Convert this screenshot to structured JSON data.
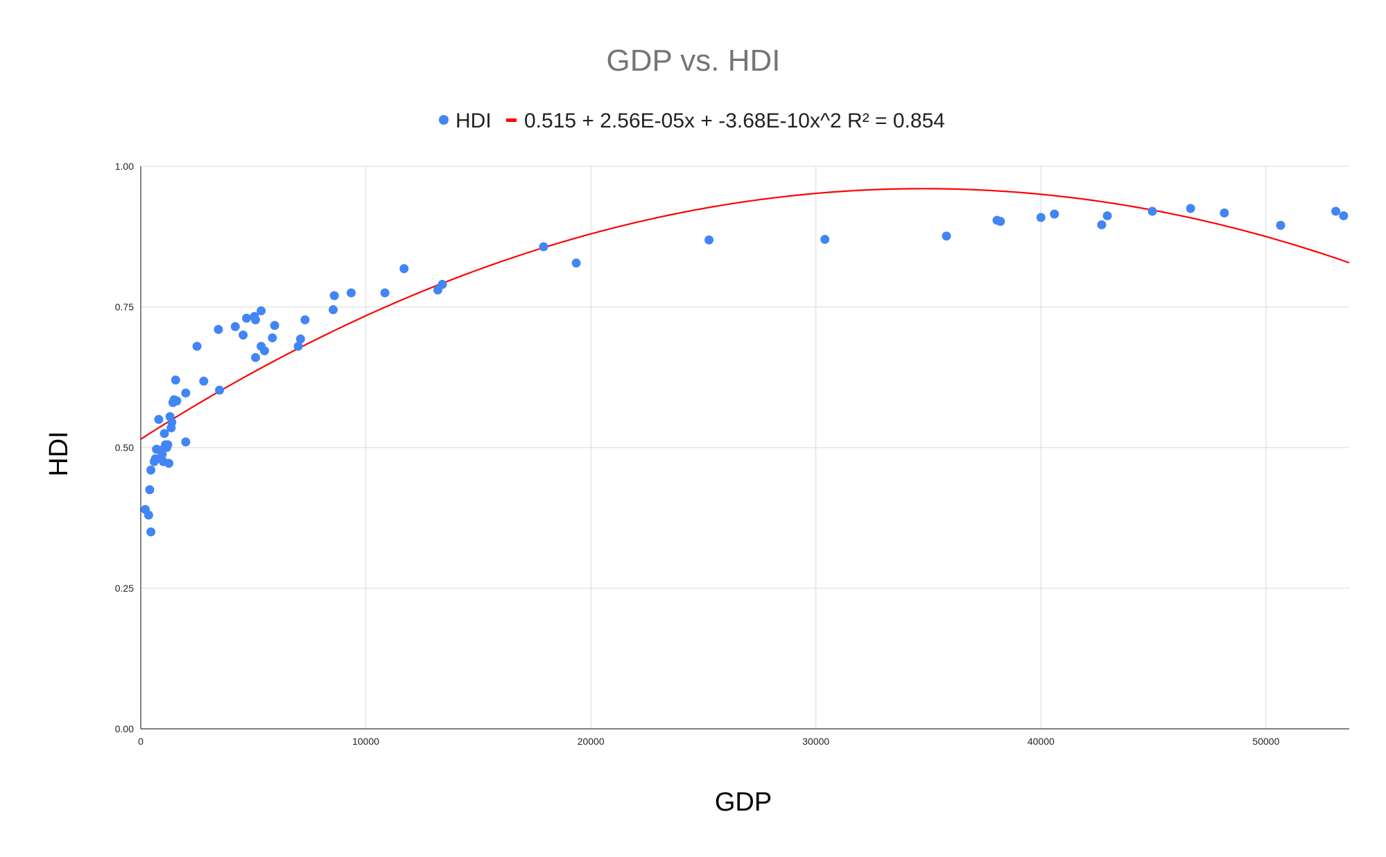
{
  "chart_data": {
    "type": "scatter",
    "title": "GDP vs. HDI",
    "xlabel": "GDP",
    "ylabel": "HDI",
    "xlim": [
      0,
      53700
    ],
    "ylim": [
      0,
      1
    ],
    "x_ticks": [
      0,
      10000,
      20000,
      30000,
      40000,
      50000
    ],
    "x_tick_labels": [
      "0",
      "10000",
      "20000",
      "30000",
      "40000",
      "50000"
    ],
    "y_ticks": [
      0,
      0.25,
      0.5,
      0.75,
      1
    ],
    "y_tick_labels": [
      "0.00",
      "0.25",
      "0.50",
      "0.75",
      "1.00"
    ],
    "grid": true,
    "legend_position": "top",
    "legend": {
      "series_label": "HDI",
      "trendline_label": "0.515 + 2.56E-05x + -3.68E-10x^2 R² = 0.854"
    },
    "colors": {
      "series": "#4285f4",
      "trendline": "#ff0000",
      "title": "#757575"
    },
    "trendline": {
      "type": "polynomial",
      "coefficients": [
        0.515,
        2.56e-05,
        -3.68e-10
      ],
      "r_squared": 0.854
    },
    "series": [
      {
        "name": "HDI",
        "points": [
          [
            200,
            0.39
          ],
          [
            350,
            0.38
          ],
          [
            400,
            0.425
          ],
          [
            450,
            0.35
          ],
          [
            450,
            0.46
          ],
          [
            600,
            0.475
          ],
          [
            650,
            0.48
          ],
          [
            700,
            0.497
          ],
          [
            800,
            0.55
          ],
          [
            900,
            0.495
          ],
          [
            950,
            0.488
          ],
          [
            1000,
            0.475
          ],
          [
            1050,
            0.525
          ],
          [
            1100,
            0.505
          ],
          [
            1150,
            0.5
          ],
          [
            1200,
            0.505
          ],
          [
            1250,
            0.472
          ],
          [
            1300,
            0.555
          ],
          [
            1350,
            0.535
          ],
          [
            1380,
            0.545
          ],
          [
            1430,
            0.58
          ],
          [
            1480,
            0.585
          ],
          [
            1550,
            0.62
          ],
          [
            1600,
            0.583
          ],
          [
            2000,
            0.51
          ],
          [
            2000,
            0.597
          ],
          [
            2500,
            0.68
          ],
          [
            2800,
            0.618
          ],
          [
            3450,
            0.71
          ],
          [
            3500,
            0.602
          ],
          [
            4200,
            0.715
          ],
          [
            4550,
            0.7
          ],
          [
            4700,
            0.73
          ],
          [
            5050,
            0.733
          ],
          [
            5100,
            0.727
          ],
          [
            5100,
            0.66
          ],
          [
            5350,
            0.743
          ],
          [
            5350,
            0.68
          ],
          [
            5500,
            0.672
          ],
          [
            5850,
            0.695
          ],
          [
            5950,
            0.717
          ],
          [
            7000,
            0.68
          ],
          [
            7100,
            0.693
          ],
          [
            7300,
            0.727
          ],
          [
            8550,
            0.745
          ],
          [
            8600,
            0.77
          ],
          [
            9350,
            0.775
          ],
          [
            10850,
            0.775
          ],
          [
            11700,
            0.818
          ],
          [
            13200,
            0.78
          ],
          [
            13400,
            0.79
          ],
          [
            17900,
            0.857
          ],
          [
            19350,
            0.828
          ],
          [
            25250,
            0.869
          ],
          [
            30400,
            0.87
          ],
          [
            35800,
            0.876
          ],
          [
            38050,
            0.904
          ],
          [
            38200,
            0.902
          ],
          [
            40000,
            0.909
          ],
          [
            40600,
            0.915
          ],
          [
            42700,
            0.896
          ],
          [
            42950,
            0.912
          ],
          [
            44950,
            0.92
          ],
          [
            46650,
            0.925
          ],
          [
            48150,
            0.917
          ],
          [
            50650,
            0.895
          ],
          [
            53100,
            0.92
          ],
          [
            53450,
            0.912
          ]
        ]
      }
    ]
  }
}
